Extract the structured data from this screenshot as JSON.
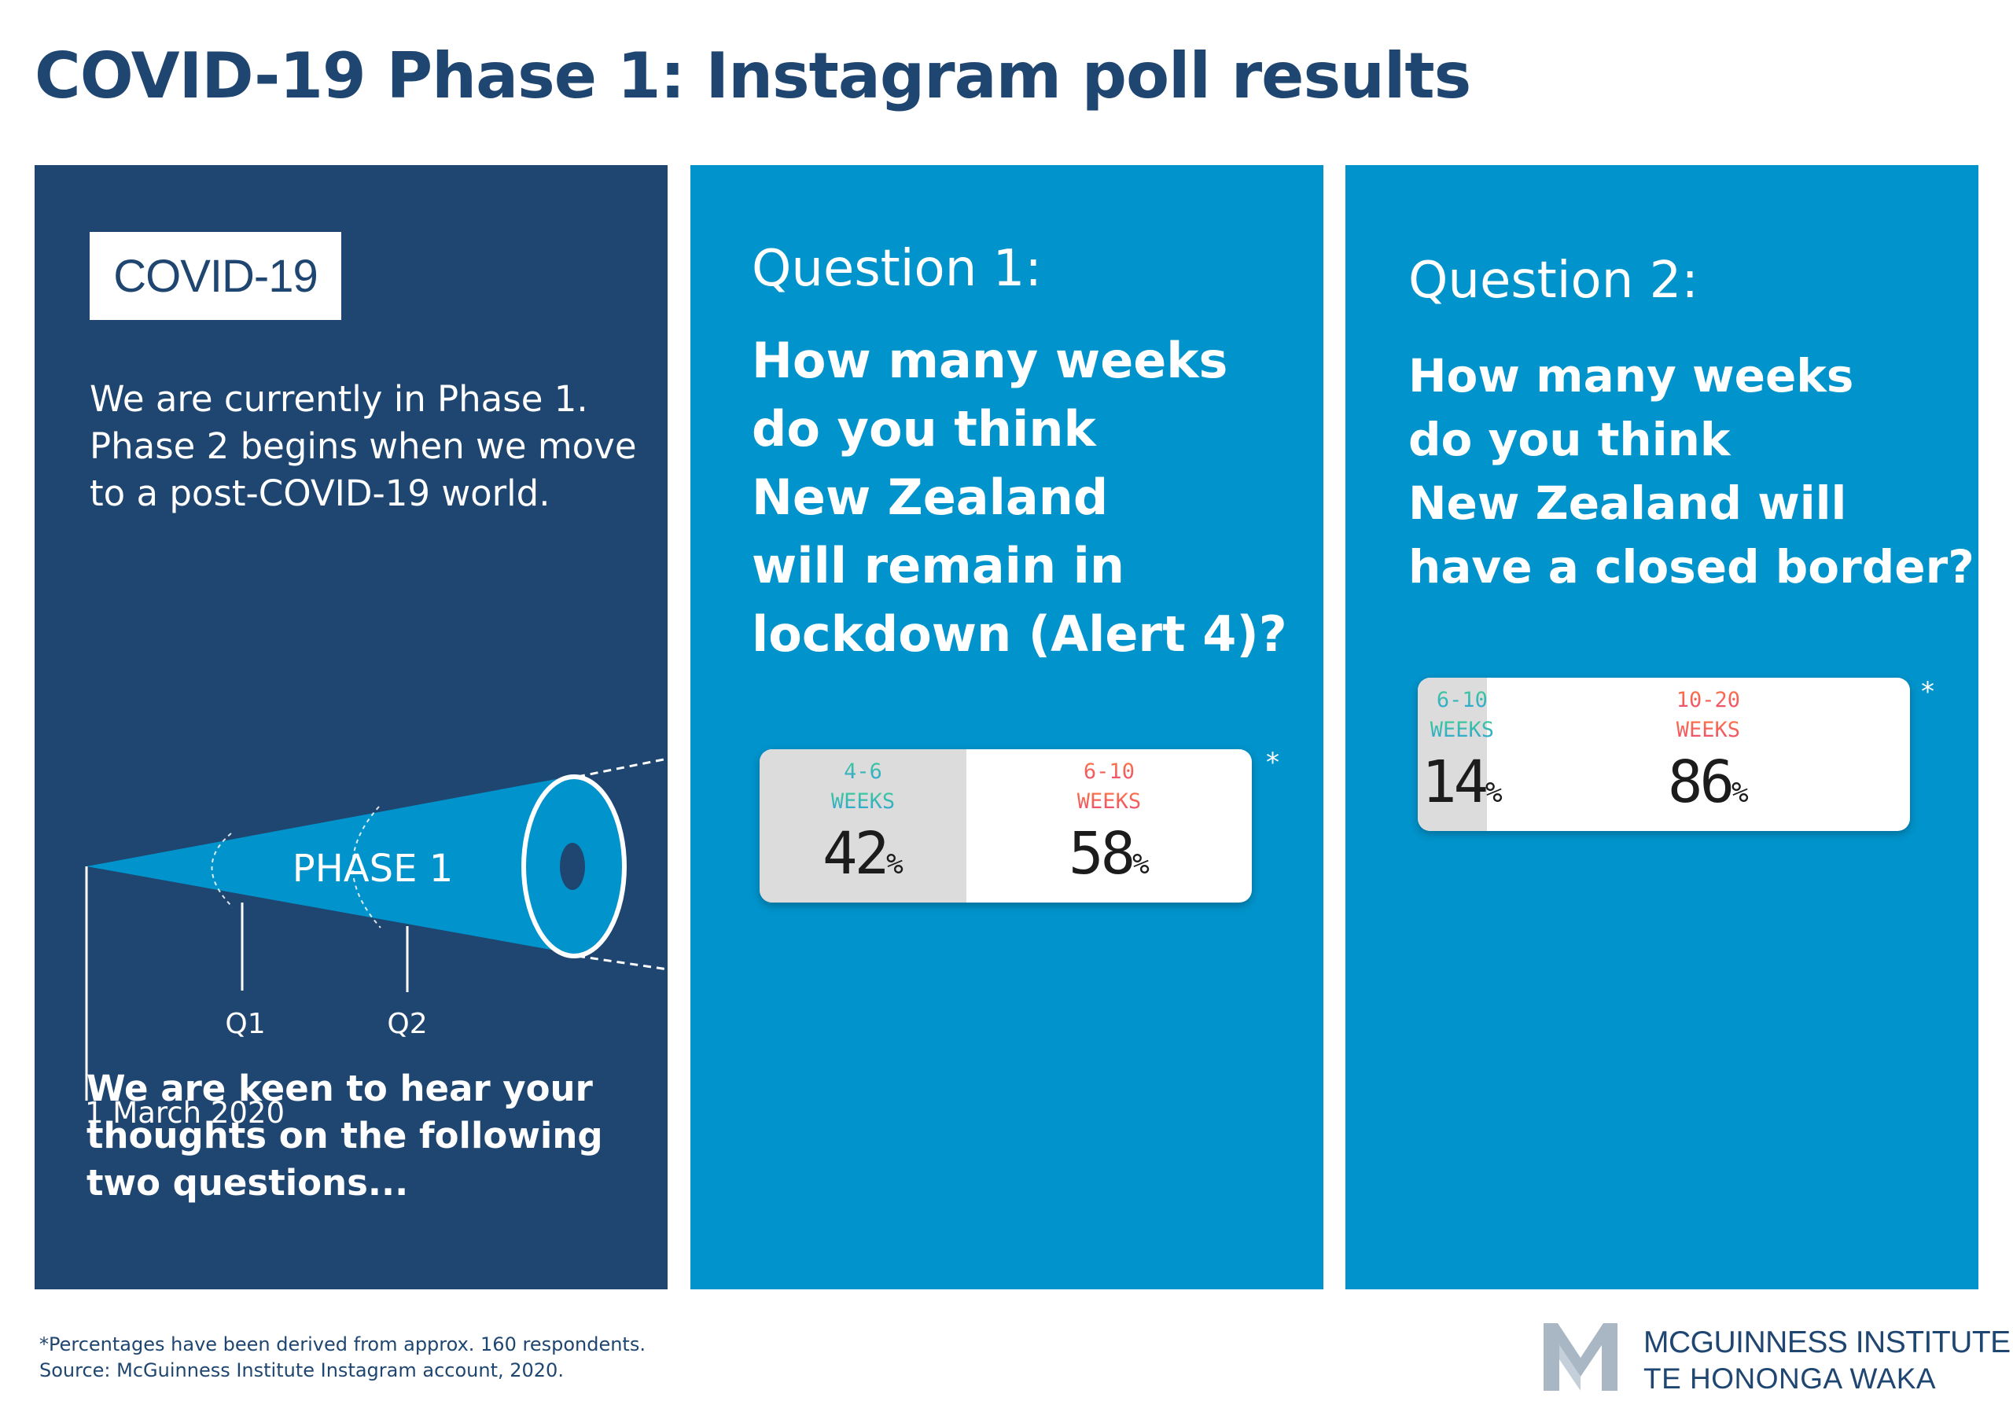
{
  "title": "COVID-19 Phase 1: Instagram poll results",
  "intro": {
    "label": "COVID-19",
    "text_lines": [
      "We are currently in Phase 1.",
      "Phase 2 begins when we move",
      "to a post-COVID-19 world."
    ],
    "timeline": {
      "phase_label": "PHASE 1",
      "markers": [
        "Q1",
        "Q2"
      ],
      "start_date": "1 March 2020"
    },
    "cta_lines": [
      "We are keen to hear your",
      "thoughts on the following",
      "two questions..."
    ]
  },
  "question1": {
    "label": "Question 1:",
    "text_lines": [
      "How many weeks",
      "do you think",
      "New Zealand",
      "will remain in",
      "lockdown (Alert 4)?"
    ],
    "poll": {
      "options": [
        {
          "range": "4-6",
          "unit": "WEEKS",
          "percent": "42",
          "sign": "%"
        },
        {
          "range": "6-10",
          "unit": "WEEKS",
          "percent": "58",
          "sign": "%"
        }
      ],
      "asterisk": "*"
    }
  },
  "question2": {
    "label": "Question 2:",
    "text_lines": [
      "How many weeks",
      "do you think",
      "New Zealand will",
      "have a closed border?"
    ],
    "poll": {
      "options": [
        {
          "range": "6-10",
          "unit": "WEEKS",
          "percent": "14",
          "sign": "%"
        },
        {
          "range": "10-20",
          "unit": "WEEKS",
          "percent": "86",
          "sign": "%"
        }
      ],
      "asterisk": "*"
    }
  },
  "footnote": [
    "*Percentages have been derived from approx. 160 respondents.",
    "Source: McGuinness Institute Instagram account, 2020."
  ],
  "organization": {
    "name": "MCGUINNESS INSTITUTE",
    "subtitle": "TE HONONGA WAKA"
  },
  "colors": {
    "navy": "#1f4670",
    "blue": "#0193cb",
    "logo_grey": "#a9b6c3"
  }
}
